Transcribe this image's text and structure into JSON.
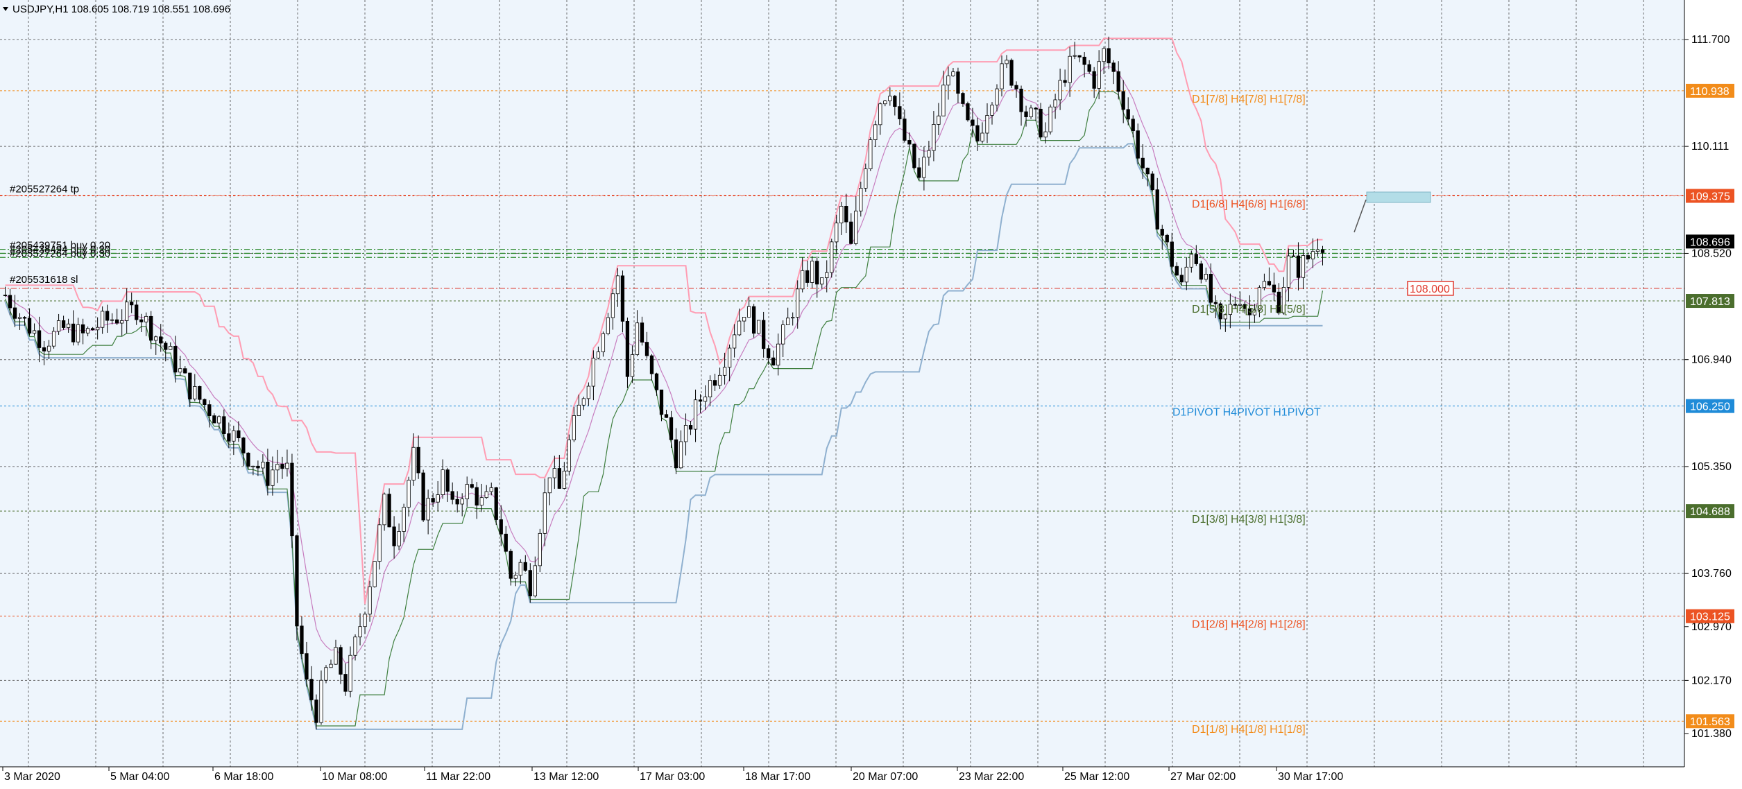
{
  "header": {
    "symbol_line": "USDJPY,H1  108.605 108.719 108.551 108.696",
    "dropdown_icon": "triangle-down-icon"
  },
  "colors": {
    "background": "#eef5fc",
    "grid": "#4a4a4a",
    "bull_candle": "#000000",
    "bear_candle": "#000000",
    "orange_level": "#f28c1a",
    "red_level": "#ec5323",
    "green_level": "#4b6e2d",
    "blue_level": "#1f8bd8",
    "pink_line": "#ff9db3",
    "lightblue_line": "#8fb0cf",
    "green_line": "#3f7f3f",
    "magenta_line": "#c77dbf",
    "trade_lines": "#2e8b2e",
    "sl_line": "#e0584f"
  },
  "price_axis": {
    "labels": [
      "111.700",
      "110.111",
      "108.520",
      "106.940",
      "105.350",
      "103.760",
      "102.970",
      "102.170",
      "101.380"
    ],
    "current_price": "108.696",
    "markers": [
      {
        "text": "110.938",
        "color": "#f28c1a"
      },
      {
        "text": "109.375",
        "color": "#ec5323"
      },
      {
        "text": "107.813",
        "color": "#4b6e2d"
      },
      {
        "text": "106.250",
        "color": "#1f8bd8"
      },
      {
        "text": "104.688",
        "color": "#4b6e2d"
      },
      {
        "text": "103.125",
        "color": "#ec5323"
      },
      {
        "text": "101.563",
        "color": "#f28c1a"
      }
    ]
  },
  "time_axis": {
    "labels": [
      "3 Mar 2020",
      "5 Mar 04:00",
      "6 Mar 18:00",
      "10 Mar 08:00",
      "11 Mar 22:00",
      "13 Mar 12:00",
      "17 Mar 03:00",
      "18 Mar 17:00",
      "20 Mar 07:00",
      "23 Mar 22:00",
      "25 Mar 12:00",
      "27 Mar 02:00",
      "30 Mar 17:00"
    ]
  },
  "level_labels": [
    {
      "text": "D1[7/8] H4[7/8] H1[7/8]",
      "color": "#f28c1a"
    },
    {
      "text": "D1[6/8] H4[6/8] H1[6/8]",
      "color": "#ec5323"
    },
    {
      "text": "D1[5/8] H4[5/8] H1[5/8]",
      "color": "#4b6e2d"
    },
    {
      "text": "D1PIVOT H4PIVOT H1PIVOT",
      "color": "#1f8bd8"
    },
    {
      "text": "D1[3/8] H4[3/8] H1[3/8]",
      "color": "#4b6e2d"
    },
    {
      "text": "D1[2/8] H4[2/8] H1[2/8]",
      "color": "#ec5323"
    },
    {
      "text": "D1[1/8] H4[1/8] H1[1/8]",
      "color": "#f28c1a"
    }
  ],
  "trade_labels": {
    "tp": "#205527264 tp",
    "sl": "#205531618 sl",
    "buy_lines": [
      "#205439751 buy 0.20",
      "#205438494 buy 0.20",
      "#205527264 buy 0.30"
    ],
    "alert_price": "108.000"
  },
  "chart_data": {
    "type": "candlestick",
    "title": "USDJPY,H1",
    "last_bar": {
      "open": 108.605,
      "high": 108.719,
      "low": 108.551,
      "close": 108.696
    },
    "ylim": [
      101.0,
      112.1
    ],
    "levels": [
      110.938,
      109.375,
      107.813,
      106.25,
      104.688,
      103.125,
      101.563
    ],
    "trade_levels": {
      "tp": 109.375,
      "buy": [
        108.58,
        108.52,
        108.46
      ],
      "sl": 108.0
    },
    "price_path": [
      [
        0,
        107.9
      ],
      [
        4,
        107.5
      ],
      [
        8,
        107.2
      ],
      [
        12,
        107.4
      ],
      [
        16,
        107.3
      ],
      [
        20,
        107.5
      ],
      [
        24,
        107.6
      ],
      [
        27,
        107.7
      ],
      [
        30,
        107.4
      ],
      [
        34,
        107.0
      ],
      [
        38,
        106.5
      ],
      [
        42,
        106.2
      ],
      [
        46,
        105.9
      ],
      [
        50,
        105.5
      ],
      [
        54,
        105.2
      ],
      [
        56,
        105.4
      ],
      [
        58,
        105.3
      ],
      [
        60,
        103.0
      ],
      [
        62,
        102.1
      ],
      [
        64,
        101.7
      ],
      [
        66,
        102.3
      ],
      [
        68,
        102.5
      ],
      [
        70,
        102.1
      ],
      [
        72,
        102.7
      ],
      [
        74,
        103.3
      ],
      [
        76,
        104.0
      ],
      [
        78,
        104.8
      ],
      [
        80,
        104.3
      ],
      [
        82,
        104.8
      ],
      [
        84,
        105.5
      ],
      [
        86,
        104.7
      ],
      [
        88,
        104.9
      ],
      [
        90,
        105.2
      ],
      [
        92,
        104.7
      ],
      [
        94,
        105.0
      ],
      [
        96,
        105.0
      ],
      [
        98,
        104.8
      ],
      [
        100,
        104.9
      ],
      [
        102,
        104.4
      ],
      [
        104,
        103.7
      ],
      [
        106,
        103.9
      ],
      [
        108,
        103.6
      ],
      [
        110,
        104.5
      ],
      [
        112,
        105.3
      ],
      [
        114,
        105.0
      ],
      [
        116,
        105.7
      ],
      [
        118,
        106.2
      ],
      [
        120,
        106.7
      ],
      [
        122,
        107.2
      ],
      [
        124,
        107.7
      ],
      [
        126,
        108.2
      ],
      [
        128,
        106.7
      ],
      [
        130,
        107.5
      ],
      [
        132,
        106.9
      ],
      [
        134,
        106.4
      ],
      [
        136,
        106.0
      ],
      [
        138,
        105.5
      ],
      [
        140,
        105.8
      ],
      [
        142,
        106.2
      ],
      [
        144,
        106.5
      ],
      [
        146,
        106.7
      ],
      [
        148,
        107.0
      ],
      [
        150,
        107.4
      ],
      [
        152,
        107.7
      ],
      [
        154,
        107.5
      ],
      [
        156,
        107.2
      ],
      [
        158,
        107.0
      ],
      [
        160,
        107.3
      ],
      [
        162,
        107.7
      ],
      [
        164,
        108.1
      ],
      [
        166,
        108.3
      ],
      [
        168,
        108.0
      ],
      [
        170,
        108.6
      ],
      [
        172,
        109.2
      ],
      [
        174,
        108.6
      ],
      [
        176,
        109.5
      ],
      [
        178,
        110.3
      ],
      [
        180,
        110.8
      ],
      [
        182,
        111.0
      ],
      [
        184,
        110.4
      ],
      [
        186,
        110.0
      ],
      [
        188,
        109.6
      ],
      [
        190,
        110.1
      ],
      [
        192,
        110.6
      ],
      [
        194,
        111.3
      ],
      [
        196,
        110.8
      ],
      [
        198,
        110.4
      ],
      [
        200,
        110.2
      ],
      [
        202,
        110.7
      ],
      [
        204,
        111.1
      ],
      [
        206,
        111.3
      ],
      [
        208,
        111.0
      ],
      [
        210,
        110.6
      ],
      [
        212,
        110.5
      ],
      [
        214,
        110.3
      ],
      [
        216,
        110.8
      ],
      [
        218,
        111.2
      ],
      [
        220,
        111.4
      ],
      [
        222,
        111.3
      ],
      [
        224,
        111.1
      ],
      [
        226,
        111.5
      ],
      [
        228,
        111.2
      ],
      [
        230,
        110.8
      ],
      [
        232,
        110.3
      ],
      [
        234,
        109.8
      ],
      [
        236,
        109.3
      ],
      [
        238,
        108.8
      ],
      [
        240,
        108.4
      ],
      [
        242,
        108.0
      ],
      [
        244,
        108.6
      ],
      [
        246,
        108.3
      ],
      [
        248,
        107.8
      ],
      [
        250,
        107.4
      ],
      [
        252,
        107.7
      ],
      [
        254,
        107.9
      ],
      [
        256,
        107.6
      ],
      [
        258,
        108.1
      ],
      [
        260,
        108.0
      ],
      [
        262,
        107.8
      ],
      [
        264,
        108.4
      ],
      [
        266,
        108.3
      ],
      [
        268,
        108.45
      ],
      [
        270,
        108.7
      ]
    ]
  }
}
